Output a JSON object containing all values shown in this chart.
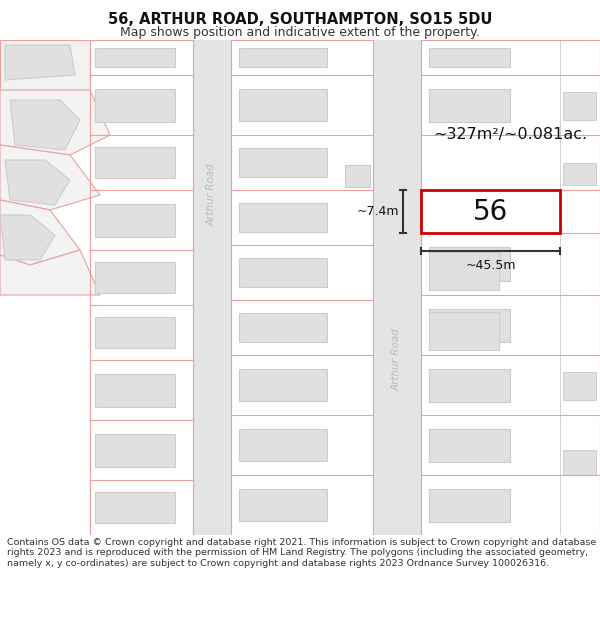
{
  "title": "56, ARTHUR ROAD, SOUTHAMPTON, SO15 5DU",
  "subtitle": "Map shows position and indicative extent of the property.",
  "footer": "Contains OS data © Crown copyright and database right 2021. This information is subject to Crown copyright and database rights 2023 and is reproduced with the permission of HM Land Registry. The polygons (including the associated geometry, namely x, y co-ordinates) are subject to Crown copyright and database rights 2023 Ordnance Survey 100026316.",
  "area_text": "~327m²/~0.081ac.",
  "width_text": "~45.5m",
  "height_text": "~7.4m",
  "number_text": "56",
  "bg_color": "#ffffff",
  "map_bg": "#f7f7f7",
  "road_color": "#e4e4e4",
  "plot_line_color": "#e8a0a0",
  "building_fill": "#e0e0e0",
  "building_stroke": "#cccccc",
  "highlight_fill": "#ffffff",
  "highlight_stroke": "#cc0000",
  "road_label_color": "#bbbbbb",
  "dim_line_color": "#333333"
}
